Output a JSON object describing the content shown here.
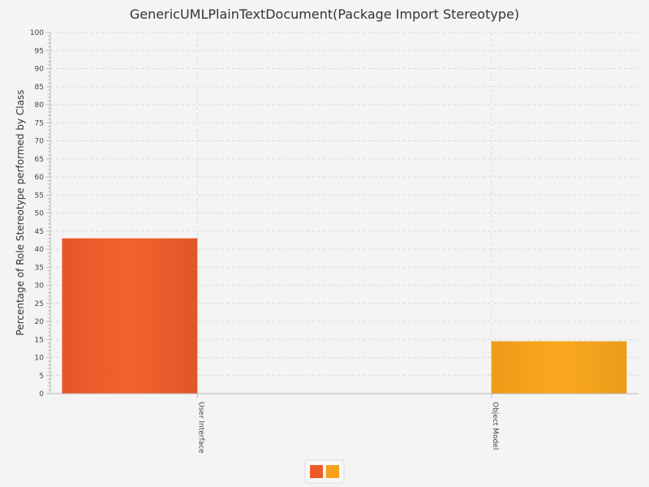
{
  "chart_data": {
    "type": "bar",
    "title": "GenericUMLPlainTextDocument(Package Import Stereotype)",
    "xlabel": "",
    "ylabel": "Percentage of Role Stereotype performed by Class",
    "categories": [
      "User Interface",
      "Object Model"
    ],
    "series": [
      {
        "values": [
          43,
          0
        ],
        "color": "#f05a28"
      },
      {
        "values": [
          0,
          14.5
        ],
        "color": "#f6a11b"
      }
    ],
    "ylim": [
      0,
      100
    ],
    "yticks": [
      0,
      5,
      10,
      15,
      20,
      25,
      30,
      35,
      40,
      45,
      50,
      55,
      60,
      65,
      70,
      75,
      80,
      85,
      90,
      95,
      100
    ],
    "grid": true,
    "legend": {
      "placement": "bottom-center",
      "swatch_colors": [
        "#f05a28",
        "#f6a11b"
      ]
    }
  }
}
